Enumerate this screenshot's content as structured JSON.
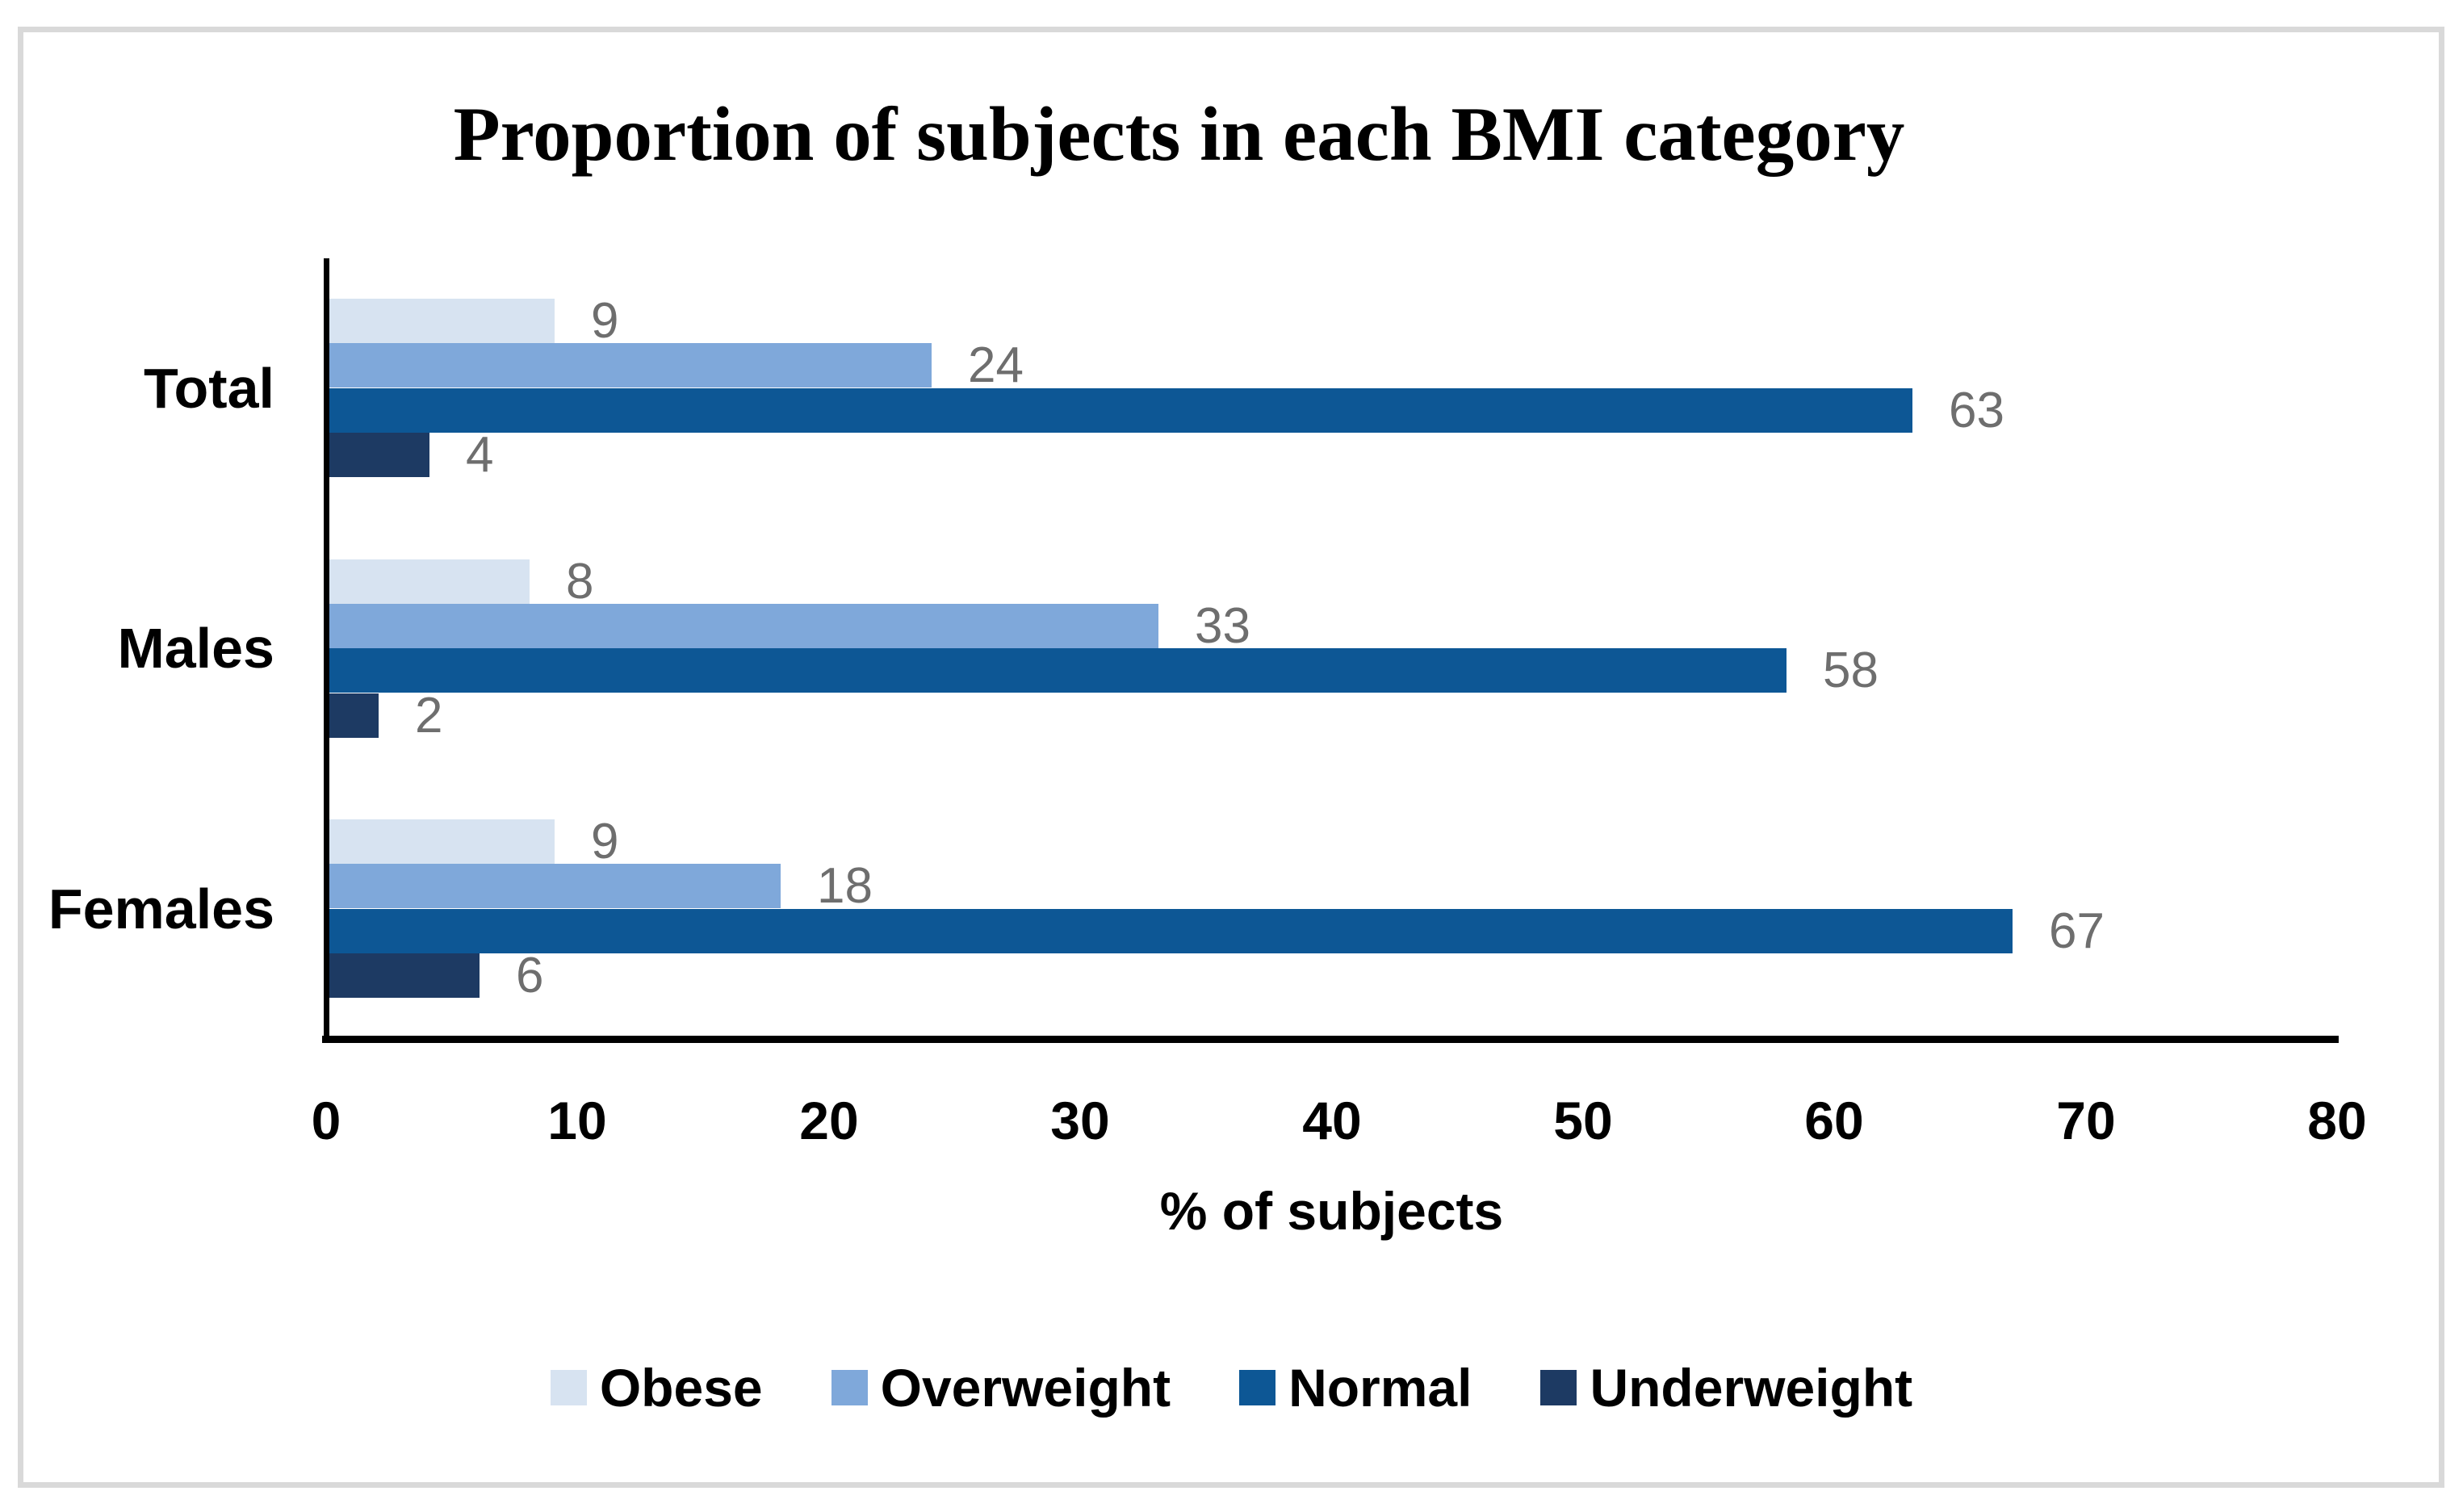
{
  "chart_data": {
    "type": "bar",
    "orientation": "horizontal",
    "title": "Proportion of subjects in each BMI category",
    "xlabel": "% of subjects",
    "categories": [
      "Total",
      "Males",
      "Females"
    ],
    "series": [
      {
        "name": "Obese",
        "color": "#d7e3f1",
        "values": [
          9,
          8,
          9
        ]
      },
      {
        "name": "Overweight",
        "color": "#7fa8da",
        "values": [
          24,
          33,
          18
        ]
      },
      {
        "name": "Normal",
        "color": "#0d5795",
        "values": [
          63,
          58,
          67
        ]
      },
      {
        "name": "Underweight",
        "color": "#1d3a63",
        "values": [
          4,
          2,
          6
        ]
      }
    ],
    "xlim": [
      0,
      80
    ],
    "xticks": [
      0,
      10,
      20,
      30,
      40,
      50,
      60,
      70,
      80
    ],
    "grid": false,
    "legend_position": "bottom",
    "data_labels": true,
    "data_label_color": "#6e6e6e",
    "frame_color": "#d9d9d9"
  }
}
